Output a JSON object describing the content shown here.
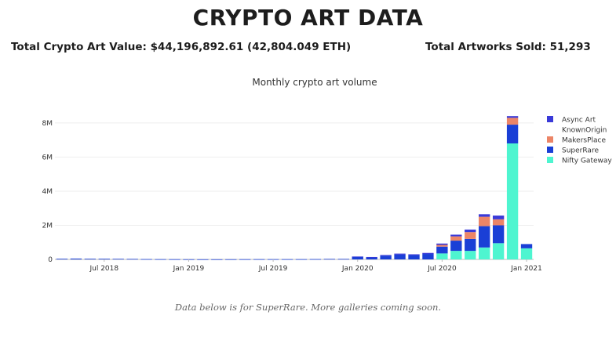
{
  "header": {
    "title": "CRYPTO ART DATA",
    "total_value": "Total Crypto Art Value: $44,196,892.61 (42,804.049 ETH)",
    "total_sold": "Total Artworks Sold: 51,293"
  },
  "footnote": "Data below is for SuperRare. More galleries coming soon.",
  "chart_data": {
    "type": "bar",
    "stacked": true,
    "title": "Monthly crypto art volume",
    "xlabel": "",
    "ylabel": "",
    "ylim": [
      0,
      8500000
    ],
    "y_ticks": [
      0,
      2000000,
      4000000,
      6000000,
      8000000
    ],
    "y_tick_labels": [
      "0",
      "2M",
      "4M",
      "6M",
      "8M"
    ],
    "x_tick_labels": [
      {
        "label": "Jul 2018",
        "at": "2018-07"
      },
      {
        "label": "Jan 2019",
        "at": "2019-01"
      },
      {
        "label": "Jul 2019",
        "at": "2019-07"
      },
      {
        "label": "Jan 2020",
        "at": "2020-01"
      },
      {
        "label": "Jul 2020",
        "at": "2020-07"
      },
      {
        "label": "Jan 2021",
        "at": "2021-01"
      }
    ],
    "grid": true,
    "legend_position": "right",
    "categories": [
      "2018-04",
      "2018-05",
      "2018-06",
      "2018-07",
      "2018-08",
      "2018-09",
      "2018-10",
      "2018-11",
      "2018-12",
      "2019-01",
      "2019-02",
      "2019-03",
      "2019-04",
      "2019-05",
      "2019-06",
      "2019-07",
      "2019-08",
      "2019-09",
      "2019-10",
      "2019-11",
      "2019-12",
      "2020-01",
      "2020-02",
      "2020-03",
      "2020-04",
      "2020-05",
      "2020-06",
      "2020-07",
      "2020-08",
      "2020-09",
      "2020-10",
      "2020-11",
      "2020-12",
      "2021-01"
    ],
    "series": [
      {
        "name": "Nifty Gateway",
        "color": "#4ef5d0",
        "values": [
          0,
          0,
          0,
          0,
          0,
          0,
          0,
          0,
          0,
          0,
          0,
          0,
          0,
          0,
          0,
          0,
          0,
          0,
          0,
          0,
          0,
          0,
          0,
          0,
          0,
          0,
          0,
          350000,
          500000,
          500000,
          700000,
          950000,
          6800000,
          650000
        ]
      },
      {
        "name": "SuperRare",
        "color": "#1a3fd6",
        "values": [
          40000,
          50000,
          40000,
          40000,
          35000,
          30000,
          20000,
          15000,
          12000,
          10000,
          8000,
          8000,
          10000,
          12000,
          15000,
          15000,
          15000,
          15000,
          20000,
          30000,
          30000,
          150000,
          120000,
          220000,
          280000,
          250000,
          320000,
          400000,
          600000,
          700000,
          1250000,
          1050000,
          1100000,
          250000
        ]
      },
      {
        "name": "MakersPlace",
        "color": "#ec8567",
        "values": [
          0,
          0,
          0,
          0,
          0,
          0,
          0,
          0,
          0,
          0,
          0,
          0,
          0,
          0,
          0,
          0,
          0,
          0,
          0,
          0,
          0,
          0,
          0,
          0,
          0,
          0,
          0,
          100000,
          250000,
          400000,
          550000,
          350000,
          400000,
          0
        ]
      },
      {
        "name": "KnownOrigin",
        "color": "#ffffff",
        "values": [
          0,
          0,
          0,
          0,
          0,
          0,
          0,
          0,
          0,
          0,
          0,
          0,
          0,
          0,
          0,
          0,
          0,
          0,
          0,
          0,
          0,
          0,
          0,
          0,
          0,
          0,
          0,
          0,
          0,
          0,
          0,
          0,
          0,
          0
        ]
      },
      {
        "name": "Async Art",
        "color": "#3a3ad8",
        "values": [
          0,
          0,
          0,
          0,
          0,
          0,
          0,
          0,
          0,
          0,
          0,
          0,
          0,
          0,
          0,
          0,
          0,
          0,
          0,
          0,
          0,
          20000,
          20000,
          40000,
          60000,
          50000,
          60000,
          80000,
          100000,
          150000,
          150000,
          220000,
          100000,
          0
        ]
      }
    ]
  }
}
